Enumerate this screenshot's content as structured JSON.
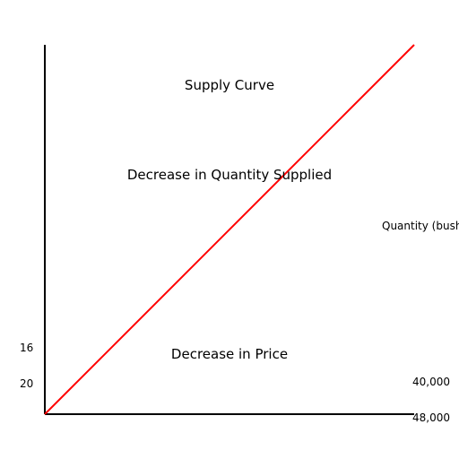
{
  "chart_data": {
    "type": "line",
    "title": "Supply Curve",
    "xlabel": "Quantity (bushels)",
    "ylabel": "",
    "series": [
      {
        "color": "#ff0000",
        "points": [
          {
            "x": 0,
            "y": 0
          },
          {
            "x": 1,
            "y": 1
          }
        ]
      }
    ],
    "annotations": [
      "Decrease in Quantity Supplied",
      "Decrease in Price"
    ],
    "y_ticks": [
      "16",
      "20"
    ],
    "x_ticks": [
      "40,000",
      "48,000"
    ],
    "grid": false,
    "legend": "none"
  }
}
